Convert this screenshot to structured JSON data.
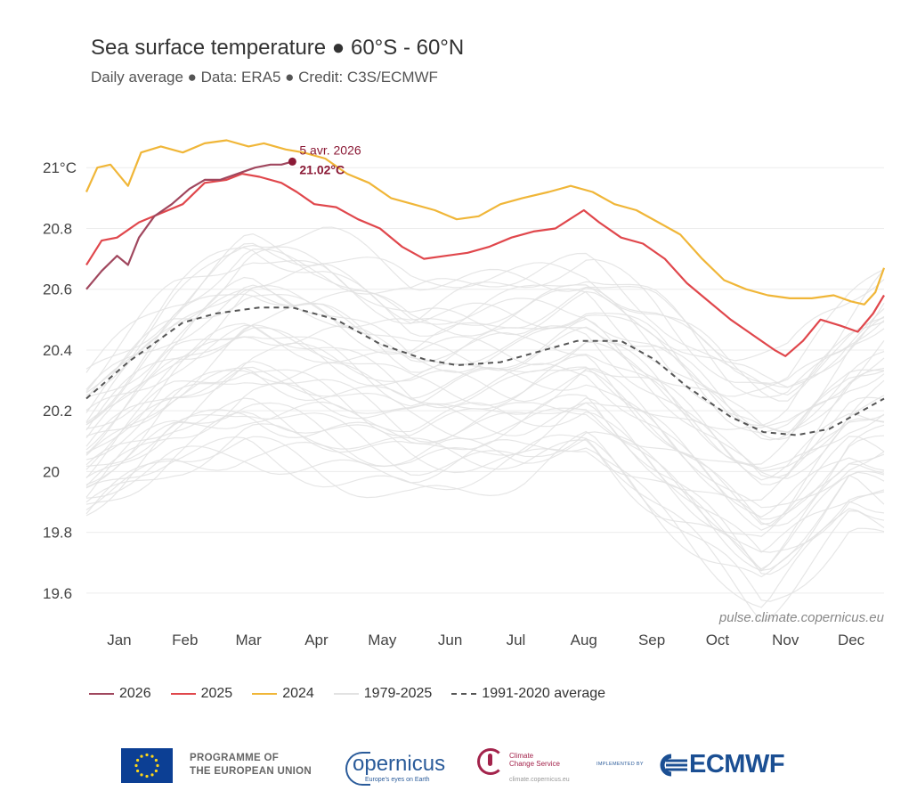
{
  "header": {
    "title": "Sea surface temperature ● 60°S - 60°N",
    "subtitle": "Daily average ● Data: ERA5 ● Credit: C3S/ECMWF"
  },
  "chart_data": {
    "type": "line",
    "title": "Sea surface temperature ● 60°S - 60°N",
    "subtitle": "Daily average ● Data: ERA5 ● Credit: C3S/ECMWF",
    "xlabel": "",
    "ylabel": "",
    "x_unit": "day of year",
    "xlim": [
      1,
      365
    ],
    "ylim": [
      19.5,
      21.2
    ],
    "grid": true,
    "y_ticks": [
      {
        "value": 19.6,
        "label": "19.6"
      },
      {
        "value": 19.8,
        "label": "19.8"
      },
      {
        "value": 20.0,
        "label": "20"
      },
      {
        "value": 20.2,
        "label": "20.2"
      },
      {
        "value": 20.4,
        "label": "20.4"
      },
      {
        "value": 20.6,
        "label": "20.6"
      },
      {
        "value": 20.8,
        "label": "20.8"
      },
      {
        "value": 21.0,
        "label": "21°C"
      }
    ],
    "x_ticks": [
      {
        "value": 16,
        "label": "Jan"
      },
      {
        "value": 46,
        "label": "Feb"
      },
      {
        "value": 75,
        "label": "Mar"
      },
      {
        "value": 106,
        "label": "Apr"
      },
      {
        "value": 136,
        "label": "May"
      },
      {
        "value": 167,
        "label": "Jun"
      },
      {
        "value": 197,
        "label": "Jul"
      },
      {
        "value": 228,
        "label": "Aug"
      },
      {
        "value": 259,
        "label": "Sep"
      },
      {
        "value": 289,
        "label": "Oct"
      },
      {
        "value": 320,
        "label": "Nov"
      },
      {
        "value": 350,
        "label": "Dec"
      }
    ],
    "series": [
      {
        "name": "1979-2025",
        "color": "#e2e2e2",
        "style": "band",
        "lower": [
          [
            1,
            19.85
          ],
          [
            40,
            20.0
          ],
          [
            75,
            20.05
          ],
          [
            110,
            20.0
          ],
          [
            150,
            19.95
          ],
          [
            200,
            19.98
          ],
          [
            230,
            20.05
          ],
          [
            260,
            19.85
          ],
          [
            295,
            19.65
          ],
          [
            310,
            19.55
          ],
          [
            330,
            19.7
          ],
          [
            350,
            19.85
          ],
          [
            365,
            19.8
          ]
        ],
        "upper": [
          [
            1,
            20.3
          ],
          [
            40,
            20.6
          ],
          [
            75,
            20.8
          ],
          [
            110,
            20.75
          ],
          [
            150,
            20.6
          ],
          [
            200,
            20.65
          ],
          [
            230,
            20.7
          ],
          [
            260,
            20.6
          ],
          [
            295,
            20.4
          ],
          [
            320,
            20.35
          ],
          [
            345,
            20.5
          ],
          [
            365,
            20.65
          ]
        ]
      },
      {
        "name": "1991-2020 average",
        "color": "#555555",
        "style": "dashed",
        "points": [
          [
            1,
            20.24
          ],
          [
            20,
            20.36
          ],
          [
            45,
            20.49
          ],
          [
            60,
            20.52
          ],
          [
            80,
            20.54
          ],
          [
            95,
            20.54
          ],
          [
            115,
            20.5
          ],
          [
            135,
            20.42
          ],
          [
            155,
            20.37
          ],
          [
            170,
            20.35
          ],
          [
            190,
            20.36
          ],
          [
            205,
            20.39
          ],
          [
            225,
            20.43
          ],
          [
            245,
            20.43
          ],
          [
            260,
            20.37
          ],
          [
            275,
            20.28
          ],
          [
            295,
            20.18
          ],
          [
            310,
            20.13
          ],
          [
            325,
            20.12
          ],
          [
            340,
            20.14
          ],
          [
            355,
            20.2
          ],
          [
            365,
            20.24
          ]
        ]
      },
      {
        "name": "2024",
        "color": "#f0b638",
        "style": "solid",
        "points": [
          [
            1,
            20.92
          ],
          [
            6,
            21.0
          ],
          [
            12,
            21.01
          ],
          [
            20,
            20.94
          ],
          [
            26,
            21.05
          ],
          [
            35,
            21.07
          ],
          [
            45,
            21.05
          ],
          [
            55,
            21.08
          ],
          [
            65,
            21.09
          ],
          [
            75,
            21.07
          ],
          [
            82,
            21.08
          ],
          [
            92,
            21.06
          ],
          [
            100,
            21.05
          ],
          [
            110,
            21.03
          ],
          [
            120,
            20.98
          ],
          [
            130,
            20.95
          ],
          [
            140,
            20.9
          ],
          [
            150,
            20.88
          ],
          [
            160,
            20.86
          ],
          [
            170,
            20.83
          ],
          [
            180,
            20.84
          ],
          [
            190,
            20.88
          ],
          [
            200,
            20.9
          ],
          [
            212,
            20.92
          ],
          [
            222,
            20.94
          ],
          [
            232,
            20.92
          ],
          [
            242,
            20.88
          ],
          [
            252,
            20.86
          ],
          [
            262,
            20.82
          ],
          [
            272,
            20.78
          ],
          [
            282,
            20.7
          ],
          [
            292,
            20.63
          ],
          [
            302,
            20.6
          ],
          [
            312,
            20.58
          ],
          [
            322,
            20.57
          ],
          [
            332,
            20.57
          ],
          [
            342,
            20.58
          ],
          [
            350,
            20.56
          ],
          [
            356,
            20.55
          ],
          [
            361,
            20.59
          ],
          [
            365,
            20.67
          ]
        ]
      },
      {
        "name": "2025",
        "color": "#e0474c",
        "style": "solid",
        "points": [
          [
            1,
            20.68
          ],
          [
            8,
            20.76
          ],
          [
            15,
            20.77
          ],
          [
            25,
            20.82
          ],
          [
            35,
            20.85
          ],
          [
            45,
            20.88
          ],
          [
            55,
            20.95
          ],
          [
            65,
            20.96
          ],
          [
            72,
            20.98
          ],
          [
            80,
            20.97
          ],
          [
            90,
            20.95
          ],
          [
            97,
            20.92
          ],
          [
            105,
            20.88
          ],
          [
            115,
            20.87
          ],
          [
            125,
            20.83
          ],
          [
            135,
            20.8
          ],
          [
            145,
            20.74
          ],
          [
            155,
            20.7
          ],
          [
            165,
            20.71
          ],
          [
            175,
            20.72
          ],
          [
            185,
            20.74
          ],
          [
            195,
            20.77
          ],
          [
            205,
            20.79
          ],
          [
            215,
            20.8
          ],
          [
            228,
            20.86
          ],
          [
            235,
            20.82
          ],
          [
            245,
            20.77
          ],
          [
            255,
            20.75
          ],
          [
            265,
            20.7
          ],
          [
            275,
            20.62
          ],
          [
            285,
            20.56
          ],
          [
            295,
            20.5
          ],
          [
            305,
            20.45
          ],
          [
            315,
            20.4
          ],
          [
            320,
            20.38
          ],
          [
            328,
            20.43
          ],
          [
            336,
            20.5
          ],
          [
            345,
            20.48
          ],
          [
            353,
            20.46
          ],
          [
            360,
            20.52
          ],
          [
            365,
            20.58
          ]
        ]
      },
      {
        "name": "2026",
        "color": "#a0475e",
        "style": "solid",
        "points": [
          [
            1,
            20.6
          ],
          [
            8,
            20.66
          ],
          [
            15,
            20.71
          ],
          [
            20,
            20.68
          ],
          [
            25,
            20.77
          ],
          [
            32,
            20.84
          ],
          [
            40,
            20.88
          ],
          [
            48,
            20.93
          ],
          [
            55,
            20.96
          ],
          [
            62,
            20.96
          ],
          [
            70,
            20.98
          ],
          [
            78,
            21.0
          ],
          [
            85,
            21.01
          ],
          [
            90,
            21.01
          ],
          [
            95,
            21.02
          ]
        ]
      }
    ],
    "annotation": {
      "date": "5 avr. 2026",
      "value": 21.02,
      "value_label": "21.02°C",
      "x": 95
    }
  },
  "watermark": "pulse.climate.copernicus.eu",
  "legend": [
    {
      "label": "2026",
      "color": "#a0475e",
      "style": "solid"
    },
    {
      "label": "2025",
      "color": "#e0474c",
      "style": "solid"
    },
    {
      "label": "2024",
      "color": "#f0b638",
      "style": "solid"
    },
    {
      "label": "1979-2025",
      "color": "#e2e2e2",
      "style": "solid"
    },
    {
      "label": "1991-2020 average",
      "color": "#555555",
      "style": "dashed"
    }
  ],
  "footer": {
    "eu_line1": "PROGRAMME OF",
    "eu_line2": "THE EUROPEAN UNION",
    "copernicus_name": "opernicus",
    "copernicus_tagline": "Europe's eyes on Earth",
    "c3s_line1": "Climate",
    "c3s_line2": "Change Service",
    "c3s_url": "climate.copernicus.eu",
    "implemented_by": "IMPLEMENTED BY",
    "ecmwf": "ECMWF"
  }
}
